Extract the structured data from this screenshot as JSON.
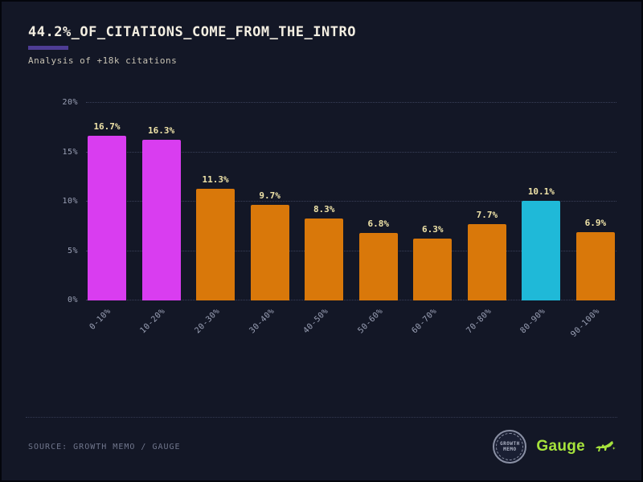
{
  "header": {
    "title": "44.2%_OF_CITATIONS_COME_FROM_THE_INTRO",
    "subtitle": "Analysis of +18k citations"
  },
  "chart_data": {
    "type": "bar",
    "title": "44.2%_OF_CITATIONS_COME_FROM_THE_INTRO",
    "subtitle": "Analysis of +18k citations",
    "categories": [
      "0-10%",
      "10-20%",
      "20-30%",
      "30-40%",
      "40-50%",
      "50-60%",
      "60-70%",
      "70-80%",
      "80-90%",
      "90-100%"
    ],
    "values": [
      16.7,
      16.3,
      11.3,
      9.7,
      8.3,
      6.8,
      6.3,
      7.7,
      10.1,
      6.9
    ],
    "value_labels": [
      "16.7%",
      "16.3%",
      "11.3%",
      "9.7%",
      "8.3%",
      "6.8%",
      "6.3%",
      "7.7%",
      "10.1%",
      "6.9%"
    ],
    "bar_colors": [
      "#d93df0",
      "#d93df0",
      "#d9780a",
      "#d9780a",
      "#d9780a",
      "#d9780a",
      "#d9780a",
      "#d9780a",
      "#1fb9d8",
      "#d9780a"
    ],
    "xlabel": "",
    "ylabel": "",
    "ylim": [
      0,
      20
    ],
    "yticks": [
      {
        "value": 0,
        "label": "0%"
      },
      {
        "value": 5,
        "label": "5%"
      },
      {
        "value": 10,
        "label": "10%"
      },
      {
        "value": 15,
        "label": "15%"
      },
      {
        "value": 20,
        "label": "20%"
      }
    ],
    "grid": "dotted-horizontal",
    "legend": "none"
  },
  "footer": {
    "source": "SOURCE: GROWTH MEMO / GAUGE",
    "badge_text": "GROWTH MEMO",
    "logo_text": "Gauge"
  },
  "colors": {
    "background": "#131726",
    "magenta": "#d93df0",
    "orange": "#d9780a",
    "cyan": "#1fb9d8",
    "accent_green": "#a6e23c",
    "title_underline": "#4e3d94"
  }
}
